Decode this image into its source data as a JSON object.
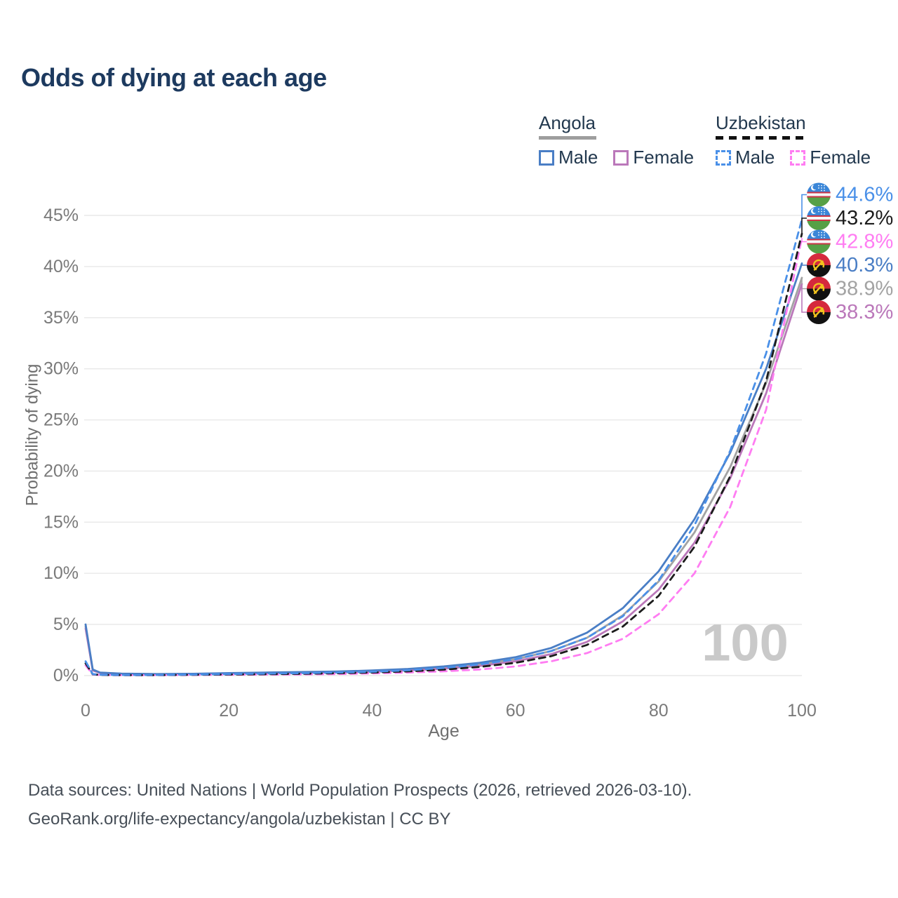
{
  "header": {
    "title": "Odds of dying at each age"
  },
  "legend": {
    "groups": [
      {
        "label": "Angola",
        "line_color": "#9e9e9e",
        "line_style": "solid",
        "items": [
          {
            "label": "Male",
            "color": "#4a7ec5",
            "style": "solid"
          },
          {
            "label": "Female",
            "color": "#bb78ba",
            "style": "solid"
          }
        ]
      },
      {
        "label": "Uzbekistan",
        "line_color": "#111111",
        "line_style": "dashed",
        "items": [
          {
            "label": "Male",
            "color": "#4a90e8",
            "style": "dashed"
          },
          {
            "label": "Female",
            "color": "#ff7df2",
            "style": "dashed"
          }
        ]
      }
    ]
  },
  "chart_data": {
    "type": "line",
    "title": "Odds of dying at each age",
    "xlabel": "Age",
    "ylabel": "Probability of dying",
    "xlim": [
      0,
      100
    ],
    "ylim": [
      0,
      45
    ],
    "xticks": [
      0,
      20,
      40,
      60,
      80,
      100
    ],
    "yticks": [
      0,
      5,
      10,
      15,
      20,
      25,
      30,
      35,
      40,
      45
    ],
    "ytick_suffix": "%",
    "grid": "horizontal",
    "gridline_color": "#e8e8e8",
    "tick_color": "#7a7a7a",
    "axis_title_color": "#6f6f6f",
    "watermark": "100",
    "watermark_color": "#c9c9c9",
    "x": [
      0,
      1,
      2,
      5,
      10,
      15,
      20,
      25,
      30,
      35,
      40,
      45,
      50,
      55,
      60,
      65,
      70,
      75,
      80,
      85,
      90,
      95,
      100
    ],
    "series": [
      {
        "name": "Angola Both sexes",
        "country": "angola",
        "sex": "both",
        "color": "#a3a3a3",
        "style": "solid",
        "values": [
          4.8,
          0.55,
          0.28,
          0.18,
          0.14,
          0.16,
          0.22,
          0.26,
          0.3,
          0.35,
          0.43,
          0.57,
          0.78,
          1.1,
          1.6,
          2.4,
          3.7,
          5.9,
          9.2,
          14.0,
          20.4,
          28.6,
          38.9
        ],
        "end_label": "38.9%",
        "flag": "angola"
      },
      {
        "name": "Angola Female",
        "country": "angola",
        "sex": "female",
        "color": "#bb78ba",
        "style": "solid",
        "values": [
          4.6,
          0.5,
          0.26,
          0.17,
          0.13,
          0.15,
          0.19,
          0.22,
          0.26,
          0.3,
          0.37,
          0.5,
          0.68,
          0.95,
          1.4,
          2.1,
          3.3,
          5.3,
          8.4,
          13.0,
          19.3,
          27.6,
          38.3
        ],
        "end_label": "38.3%",
        "flag": "angola"
      },
      {
        "name": "Angola Male",
        "country": "angola",
        "sex": "male",
        "color": "#4a7ec5",
        "style": "solid",
        "values": [
          5.0,
          0.6,
          0.3,
          0.2,
          0.15,
          0.18,
          0.25,
          0.3,
          0.35,
          0.4,
          0.5,
          0.65,
          0.9,
          1.25,
          1.8,
          2.7,
          4.2,
          6.6,
          10.2,
          15.3,
          21.8,
          30.0,
          40.3
        ],
        "end_label": "40.3%",
        "flag": "angola"
      },
      {
        "name": "Uzbekistan Female",
        "country": "uzbekistan",
        "sex": "female",
        "color": "#ff7df2",
        "style": "dashed",
        "values": [
          1.0,
          0.11,
          0.06,
          0.04,
          0.04,
          0.06,
          0.08,
          0.1,
          0.12,
          0.15,
          0.21,
          0.3,
          0.42,
          0.6,
          0.9,
          1.4,
          2.2,
          3.6,
          6.0,
          10.0,
          16.5,
          26.0,
          42.8
        ],
        "end_label": "42.8%",
        "flag": "uzbekistan"
      },
      {
        "name": "Uzbekistan Both sexes",
        "country": "uzbekistan",
        "sex": "both",
        "color": "#1c1c1c",
        "style": "dashed",
        "values": [
          1.2,
          0.13,
          0.07,
          0.05,
          0.05,
          0.08,
          0.11,
          0.14,
          0.18,
          0.23,
          0.3,
          0.41,
          0.58,
          0.85,
          1.25,
          1.9,
          3.0,
          4.8,
          7.8,
          12.6,
          19.5,
          28.8,
          43.2
        ],
        "end_label": "43.2%",
        "flag": "uzbekistan"
      },
      {
        "name": "Uzbekistan Male",
        "country": "uzbekistan",
        "sex": "male",
        "color": "#4a90e8",
        "style": "dashed",
        "values": [
          1.4,
          0.15,
          0.08,
          0.06,
          0.06,
          0.1,
          0.15,
          0.19,
          0.24,
          0.3,
          0.38,
          0.52,
          0.75,
          1.1,
          1.6,
          2.4,
          3.7,
          5.8,
          9.3,
          14.7,
          22.0,
          31.5,
          44.6
        ],
        "end_label": "44.6%",
        "flag": "uzbekistan"
      }
    ],
    "flag_colors": {
      "uzbekistan": {
        "blue": "#3a86d8",
        "red": "#cc3344",
        "white": "#f7f7f7",
        "green": "#56a046"
      },
      "angola": {
        "red": "#d5293d",
        "black": "#111111",
        "yellow": "#f2c31e"
      }
    }
  },
  "footer": {
    "line1": "Data sources: United Nations | World Population Prospects (2026, retrieved 2026-03-10).",
    "line2": "GeoRank.org/life-expectancy/angola/uzbekistan | CC BY"
  }
}
